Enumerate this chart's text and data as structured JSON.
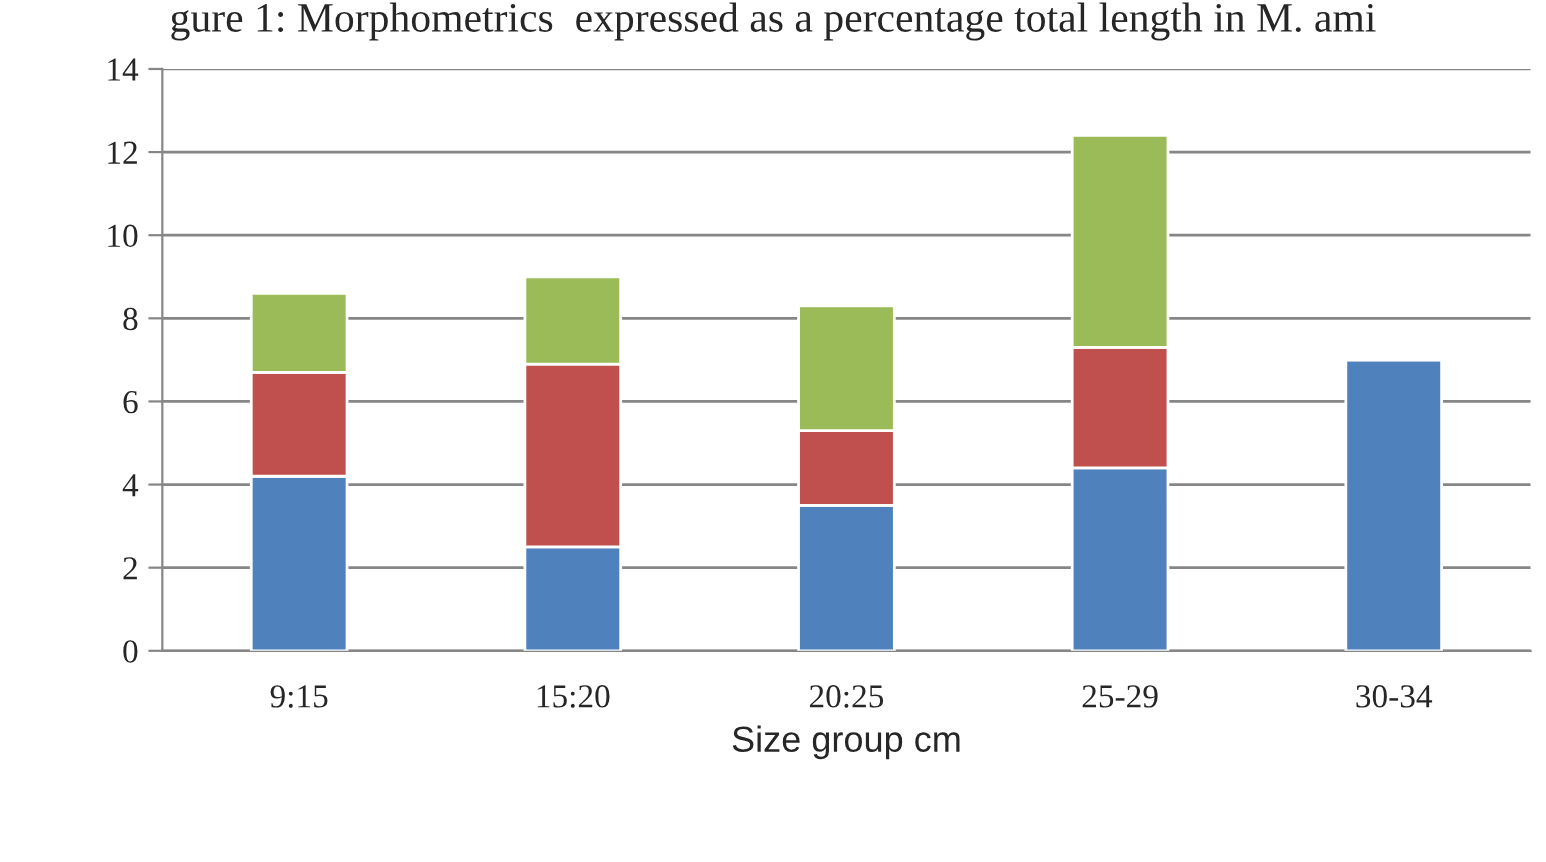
{
  "chart_data": {
    "type": "bar",
    "title": "gure 1: Morphometrics  expressed as a percentage total length in M. ami",
    "xlabel": "Size group cm",
    "categories": [
      "9:15",
      "15:20",
      "20:25",
      "25-29",
      "30-34"
    ],
    "stacked": true,
    "series": [
      {
        "color": "#4f81bd",
        "values": [
          4.2,
          2.5,
          3.5,
          4.4,
          7.0
        ]
      },
      {
        "color": "#c0504d",
        "values": [
          2.5,
          4.4,
          1.8,
          2.9,
          null
        ]
      },
      {
        "color": "#9bbb59",
        "values": [
          1.9,
          2.1,
          3.0,
          5.1,
          null
        ]
      }
    ],
    "ylim": [
      0,
      14
    ],
    "yticks": [
      0,
      2,
      4,
      6,
      8,
      10,
      12,
      14
    ],
    "grid": "y",
    "legend": false
  }
}
